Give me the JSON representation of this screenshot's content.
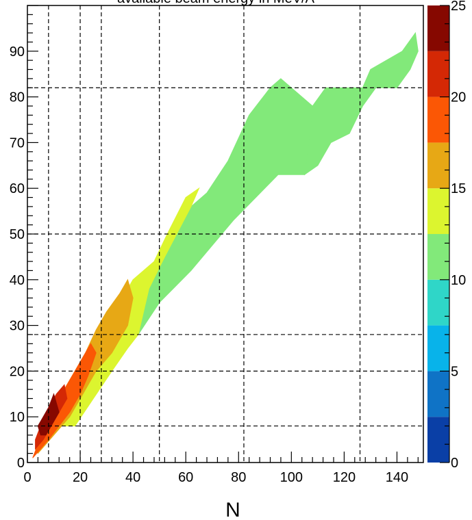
{
  "chart_data": {
    "type": "heatmap",
    "title": "available beam energy in MeV/A",
    "xlabel": "N",
    "ylabel": "",
    "xlim": [
      0,
      150
    ],
    "ylim": [
      0,
      100
    ],
    "x_ticks": [
      0,
      20,
      40,
      60,
      80,
      100,
      120,
      140
    ],
    "y_ticks": [
      0,
      10,
      20,
      30,
      40,
      50,
      60,
      70,
      80,
      90
    ],
    "magic_numbers": [
      8,
      20,
      28,
      50,
      82,
      126
    ],
    "grid": true,
    "colorbar": {
      "range": [
        0,
        25
      ],
      "ticks": [
        0,
        5,
        10,
        15,
        20,
        25
      ],
      "bins": [
        {
          "from": 0,
          "to": 2.5,
          "color": "#0a3fa6"
        },
        {
          "from": 2.5,
          "to": 5,
          "color": "#0f73c6"
        },
        {
          "from": 5,
          "to": 7.5,
          "color": "#08b3ea"
        },
        {
          "from": 7.5,
          "to": 10,
          "color": "#2fd6c8"
        },
        {
          "from": 10,
          "to": 12.5,
          "color": "#82e97a"
        },
        {
          "from": 12.5,
          "to": 15,
          "color": "#dcf52f"
        },
        {
          "from": 15,
          "to": 17.5,
          "color": "#e7a815"
        },
        {
          "from": 17.5,
          "to": 20,
          "color": "#fb5705"
        },
        {
          "from": 20,
          "to": 22.5,
          "color": "#d42805"
        },
        {
          "from": 22.5,
          "to": 25,
          "color": "#860800"
        }
      ]
    },
    "regions": [
      {
        "energy": 11,
        "points": [
          [
            105,
            63
          ],
          [
            108,
            78
          ],
          [
            113,
            82
          ],
          [
            127,
            82
          ],
          [
            130,
            86
          ],
          [
            142,
            90
          ],
          [
            147,
            94
          ],
          [
            148,
            90
          ],
          [
            145,
            86
          ],
          [
            140,
            82
          ],
          [
            132,
            82
          ],
          [
            127,
            78
          ],
          [
            122,
            72
          ],
          [
            115,
            70
          ],
          [
            110,
            65
          ]
        ]
      },
      {
        "energy": 11.5,
        "points": [
          [
            42,
            28
          ],
          [
            50,
            35
          ],
          [
            62,
            42
          ],
          [
            78,
            53
          ],
          [
            95,
            63
          ],
          [
            105,
            63
          ],
          [
            108,
            78
          ],
          [
            100,
            82
          ],
          [
            96,
            84
          ],
          [
            92,
            82
          ],
          [
            84,
            76
          ],
          [
            76,
            66
          ],
          [
            68,
            59
          ],
          [
            62,
            56
          ],
          [
            52,
            45
          ],
          [
            46,
            38
          ]
        ]
      },
      {
        "energy": 14,
        "points": [
          [
            18,
            8
          ],
          [
            25,
            14
          ],
          [
            32,
            20
          ],
          [
            38,
            25
          ],
          [
            42,
            28
          ],
          [
            46,
            38
          ],
          [
            52,
            45
          ],
          [
            62,
            56
          ],
          [
            65,
            60
          ],
          [
            60,
            58
          ],
          [
            53,
            50
          ],
          [
            48,
            44
          ],
          [
            40,
            40
          ],
          [
            35,
            35
          ],
          [
            30,
            30
          ],
          [
            24,
            24
          ],
          [
            19,
            18
          ],
          [
            14,
            13
          ],
          [
            9,
            8
          ]
        ]
      },
      {
        "energy": 16,
        "points": [
          [
            4,
            2
          ],
          [
            10,
            6
          ],
          [
            16,
            10
          ],
          [
            22,
            16
          ],
          [
            26,
            20
          ],
          [
            32,
            24
          ],
          [
            38,
            30
          ],
          [
            40,
            36
          ],
          [
            38,
            40
          ],
          [
            35,
            37
          ],
          [
            30,
            33
          ],
          [
            26,
            29
          ],
          [
            22,
            24
          ],
          [
            18,
            20
          ],
          [
            14,
            16
          ],
          [
            10,
            11
          ],
          [
            6,
            7
          ],
          [
            3,
            3
          ]
        ]
      },
      {
        "energy": 19,
        "points": [
          [
            2,
            1
          ],
          [
            5,
            3
          ],
          [
            8,
            5
          ],
          [
            12,
            8
          ],
          [
            16,
            11
          ],
          [
            20,
            15
          ],
          [
            23,
            19
          ],
          [
            26,
            24
          ],
          [
            24,
            26
          ],
          [
            21,
            23
          ],
          [
            18,
            20
          ],
          [
            14,
            16
          ],
          [
            10,
            12
          ],
          [
            7,
            8
          ],
          [
            4,
            4
          ]
        ]
      },
      {
        "energy": 21,
        "points": [
          [
            3,
            3
          ],
          [
            6,
            5
          ],
          [
            9,
            8
          ],
          [
            12,
            11
          ],
          [
            15,
            14
          ],
          [
            14,
            17
          ],
          [
            11,
            15
          ],
          [
            8,
            12
          ],
          [
            5,
            8
          ],
          [
            3,
            5
          ]
        ]
      },
      {
        "energy": 23.5,
        "points": [
          [
            5,
            6
          ],
          [
            7,
            6
          ],
          [
            10,
            9
          ],
          [
            12,
            11
          ],
          [
            10,
            15
          ],
          [
            8,
            12
          ],
          [
            6,
            10
          ],
          [
            4,
            8
          ]
        ]
      }
    ]
  }
}
